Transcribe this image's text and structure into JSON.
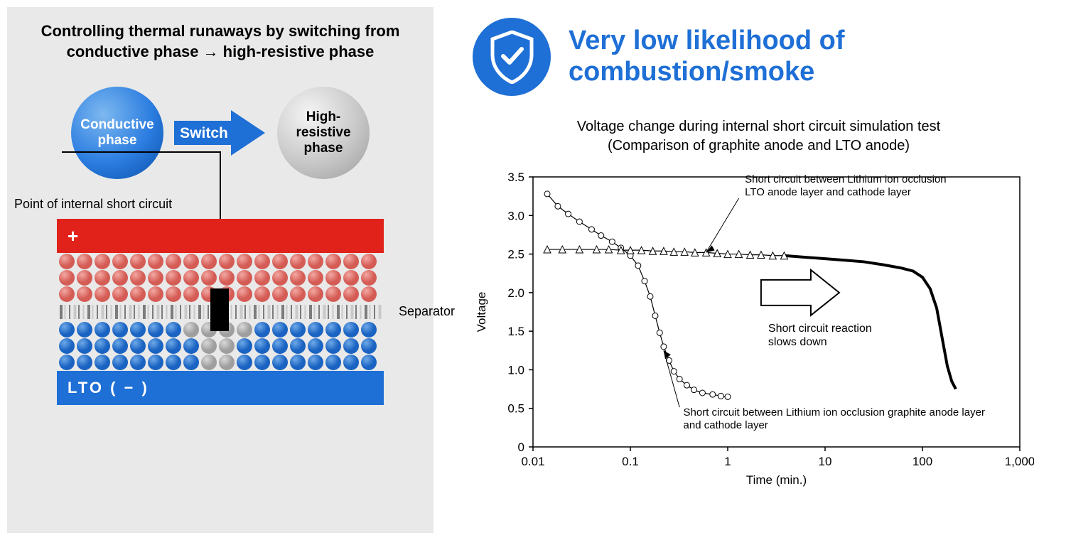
{
  "left": {
    "title_line1": "Controlling thermal runaways by switching from",
    "title_line2": "conductive phase → high-resistive phase",
    "conductive_label_l1": "Conductive",
    "conductive_label_l2": "phase",
    "switch_label": "Switch",
    "resistive_label_l1": "High-",
    "resistive_label_l2": "resistive",
    "resistive_label_l3": "phase",
    "point_label": "Point of internal short circuit",
    "plus_label": "+",
    "separator_label": "Separator",
    "lto_label": "LTO ( − )",
    "colors": {
      "panel_bg": "#e9e9e9",
      "cathode": "#e1221b",
      "lto": "#1e6fd6",
      "sphere_blue_center": "#7db8f0",
      "sphere_blue_mid": "#2b7de0",
      "sphere_blue_edge": "#0a4ea8",
      "sphere_grey_center": "#f5f5f5",
      "sphere_grey_mid": "#c8c8c8",
      "sphere_grey_edge": "#9a9a9a",
      "arrow_fill": "#1e6fd6",
      "red_particle_light": "#f3a8a3",
      "red_particle_dark": "#d45c55",
      "blue_particle_light": "#6ea9e8",
      "blue_particle_dark": "#1a63c2",
      "grey_particle_light": "#d8d8d8",
      "grey_particle_dark": "#9e9e9e"
    },
    "particle_grid": {
      "cols": 18,
      "rows": 3,
      "radius": 11,
      "spacing_x": 25,
      "spacing_y": 23
    }
  },
  "right": {
    "headline_l1": "Very low likelihood of",
    "headline_l2": "combustion/smoke",
    "chart_title_l1": "Voltage change during internal short circuit simulation test",
    "chart_title_l2": "(Comparison of graphite anode and LTO anode)",
    "badge_color": "#1e6fd6",
    "headline_color": "#1e6fd6",
    "chart": {
      "type": "line",
      "x_scale": "log",
      "xlim": [
        0.01,
        1000
      ],
      "ylim": [
        0,
        3.5
      ],
      "xticks": [
        0.01,
        0.1,
        1,
        10,
        100,
        1000
      ],
      "xtick_labels": [
        "0.01",
        "0.1",
        "1",
        "10",
        "100",
        "1,000"
      ],
      "yticks": [
        0,
        0.5,
        1.0,
        1.5,
        2.0,
        2.5,
        3.0,
        3.5
      ],
      "xlabel": "Time (min.)",
      "ylabel": "Voltage",
      "axis_color": "#000000",
      "grid": false,
      "label_fontsize": 17,
      "tick_fontsize": 17,
      "line_color": "#000000",
      "line_width": 1.2,
      "marker_size": 4,
      "series": [
        {
          "name": "graphite",
          "marker": "circle",
          "points": [
            [
              0.014,
              3.28
            ],
            [
              0.018,
              3.12
            ],
            [
              0.023,
              3.02
            ],
            [
              0.03,
              2.92
            ],
            [
              0.04,
              2.82
            ],
            [
              0.05,
              2.74
            ],
            [
              0.065,
              2.66
            ],
            [
              0.08,
              2.58
            ],
            [
              0.1,
              2.48
            ],
            [
              0.12,
              2.35
            ],
            [
              0.14,
              2.15
            ],
            [
              0.16,
              1.95
            ],
            [
              0.18,
              1.7
            ],
            [
              0.2,
              1.48
            ],
            [
              0.22,
              1.3
            ],
            [
              0.25,
              1.12
            ],
            [
              0.28,
              0.98
            ],
            [
              0.32,
              0.88
            ],
            [
              0.38,
              0.8
            ],
            [
              0.45,
              0.74
            ],
            [
              0.55,
              0.7
            ],
            [
              0.7,
              0.68
            ],
            [
              0.85,
              0.66
            ],
            [
              1.0,
              0.65
            ]
          ]
        },
        {
          "name": "lto",
          "marker": "triangle",
          "points": [
            [
              0.014,
              2.56
            ],
            [
              0.02,
              2.56
            ],
            [
              0.03,
              2.56
            ],
            [
              0.045,
              2.56
            ],
            [
              0.06,
              2.56
            ],
            [
              0.08,
              2.55
            ],
            [
              0.1,
              2.55
            ],
            [
              0.13,
              2.55
            ],
            [
              0.17,
              2.54
            ],
            [
              0.22,
              2.54
            ],
            [
              0.28,
              2.53
            ],
            [
              0.36,
              2.53
            ],
            [
              0.46,
              2.52
            ],
            [
              0.6,
              2.52
            ],
            [
              0.78,
              2.51
            ],
            [
              1.0,
              2.5
            ],
            [
              1.3,
              2.5
            ],
            [
              1.7,
              2.49
            ],
            [
              2.2,
              2.49
            ],
            [
              2.9,
              2.48
            ],
            [
              3.8,
              2.48
            ]
          ],
          "tail": [
            [
              3.8,
              2.48
            ],
            [
              6,
              2.46
            ],
            [
              10,
              2.44
            ],
            [
              16,
              2.42
            ],
            [
              25,
              2.4
            ],
            [
              40,
              2.36
            ],
            [
              60,
              2.32
            ],
            [
              80,
              2.28
            ],
            [
              100,
              2.2
            ],
            [
              120,
              2.05
            ],
            [
              140,
              1.8
            ],
            [
              160,
              1.4
            ],
            [
              180,
              1.05
            ],
            [
              200,
              0.85
            ],
            [
              220,
              0.75
            ]
          ],
          "tail_line_width": 4
        }
      ],
      "annotations": {
        "lto_label_l1": "Short circuit between Lithium ion occlusion",
        "lto_label_l2": "LTO anode layer and cathode layer",
        "graphite_label_l1": "Short circuit between Lithium ion occlusion graphite anode layer",
        "graphite_label_l2": "and cathode layer",
        "slow_label_l1": "Short circuit reaction",
        "slow_label_l2": "slows down"
      }
    }
  }
}
